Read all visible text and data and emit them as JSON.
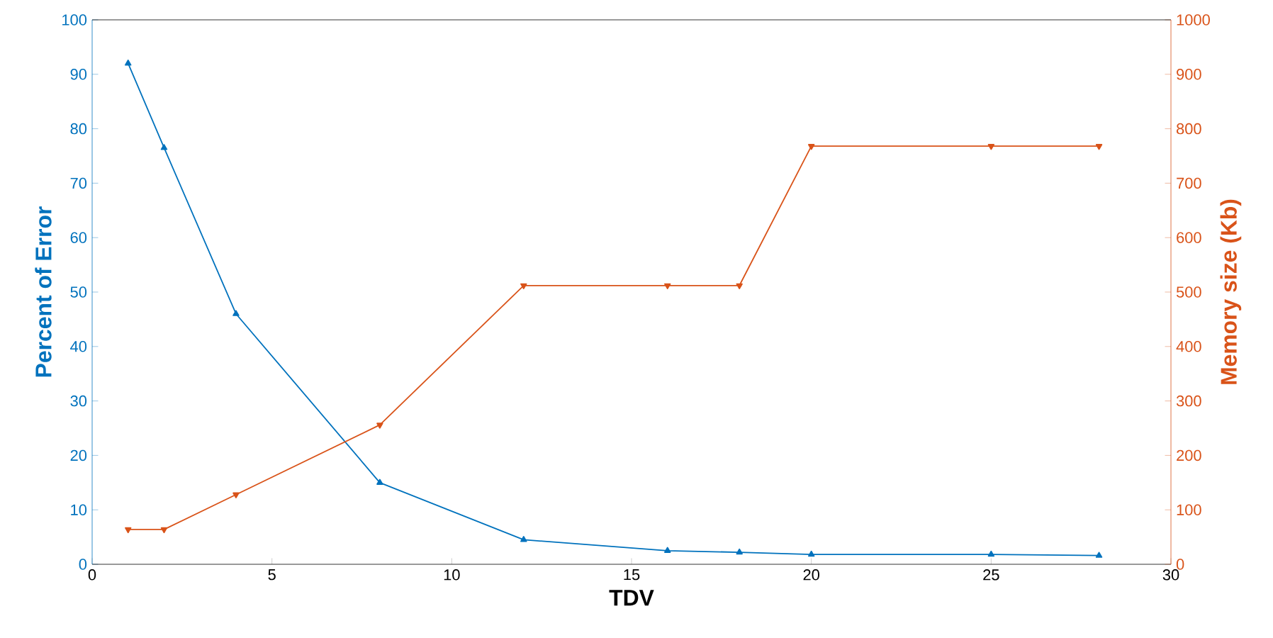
{
  "chart_data": {
    "type": "line",
    "xlabel": "TDV",
    "ylabel": "Percent of Error",
    "y2label": "Memory size (Kb)",
    "xlim": [
      0,
      30
    ],
    "xticks": [
      0,
      5,
      10,
      15,
      20,
      25,
      30
    ],
    "ylim": [
      0,
      100
    ],
    "yticks": [
      0,
      10,
      20,
      30,
      40,
      50,
      60,
      70,
      80,
      90,
      100
    ],
    "y2lim": [
      0,
      1000
    ],
    "y2ticks": [
      0,
      100,
      200,
      300,
      400,
      500,
      600,
      700,
      800,
      900,
      1000
    ],
    "grid": false,
    "marker": "triangle",
    "line_style": "solid",
    "x": [
      1,
      2,
      4,
      8,
      12,
      16,
      18,
      20,
      25,
      28
    ],
    "series": [
      {
        "color": "#0072bd",
        "values": [
          92,
          76.5,
          46,
          15,
          4.5,
          2.5,
          2.2,
          1.8,
          1.8,
          1.6
        ]
      },
      {
        "color": "#d95319",
        "axis": "y2",
        "values": [
          64,
          64,
          128,
          256,
          512,
          512,
          512,
          768,
          768,
          768
        ]
      }
    ]
  }
}
